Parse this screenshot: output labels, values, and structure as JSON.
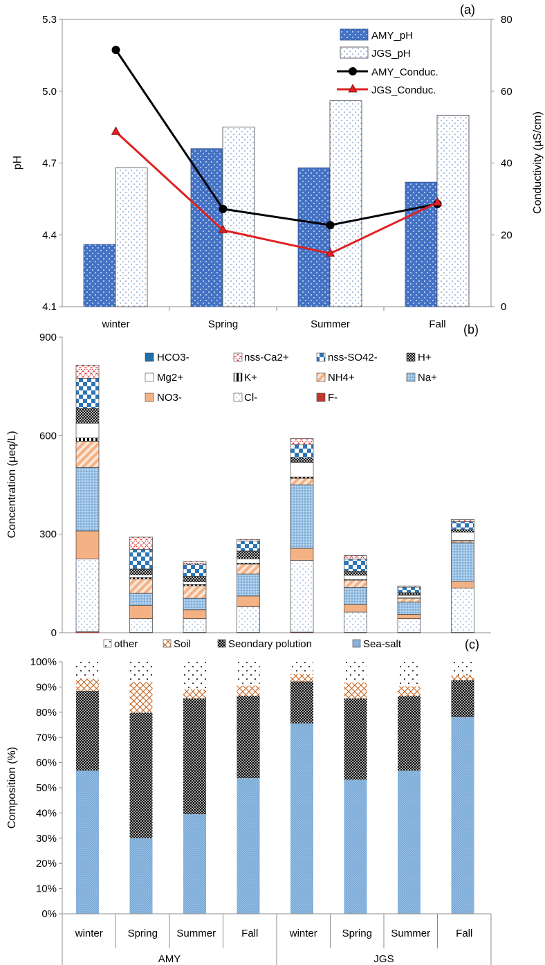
{
  "chart_data": [
    {
      "panel_label": "(a)",
      "type": "bar",
      "categories": [
        "winter",
        "Spring",
        "Summer",
        "Fall"
      ],
      "ylabel": "pH",
      "y2label": "Conductivity (µS/cm)",
      "ylim": [
        4.1,
        5.3
      ],
      "yticks": [
        "4.1",
        "4.4",
        "4.7",
        "5.0",
        "5.3"
      ],
      "y2lim": [
        0,
        80
      ],
      "y2ticks": [
        "0",
        "20",
        "40",
        "60",
        "80"
      ],
      "series": [
        {
          "name": "AMY_pH",
          "kind": "bar",
          "axis": "left",
          "color": "#4472c4",
          "values": [
            4.36,
            4.76,
            4.68,
            4.62
          ]
        },
        {
          "name": "JGS_pH",
          "kind": "bar",
          "axis": "left",
          "color": "#ffffff",
          "values": [
            4.68,
            4.85,
            4.96,
            4.9
          ]
        },
        {
          "name": "AMY_Conduc.",
          "kind": "line",
          "axis": "right",
          "color": "#000000",
          "values": [
            71.5,
            27.2,
            22.7,
            28.6
          ]
        },
        {
          "name": "JGS_Conduc.",
          "kind": "line",
          "axis": "right",
          "color": "#e02020",
          "values": [
            48.7,
            21.3,
            14.8,
            29.0
          ]
        }
      ]
    },
    {
      "panel_label": "(b)",
      "type": "bar",
      "stacked": true,
      "categories": [
        "AMY winter",
        "AMY Spring",
        "AMY Summer",
        "AMY Fall",
        "JGS winter",
        "JGS Spring",
        "JGS Summer",
        "JGS Fall"
      ],
      "ylabel": "Concentration (μeq/L)",
      "ylim": [
        0,
        900
      ],
      "yticks": [
        "0",
        "300",
        "600",
        "900"
      ],
      "series": [
        {
          "name": "F-",
          "color": "#c0392b",
          "values": [
            3,
            1,
            1,
            1,
            2,
            1,
            1,
            1
          ]
        },
        {
          "name": "Cl-",
          "color": "#ffffff",
          "values": [
            222,
            42,
            42,
            78,
            218,
            62,
            42,
            135
          ]
        },
        {
          "name": "NO3-",
          "color": "#f4b183",
          "values": [
            85,
            40,
            27,
            33,
            37,
            23,
            13,
            20
          ]
        },
        {
          "name": "Na+",
          "color": "#9dc3e6",
          "values": [
            193,
            37,
            35,
            67,
            193,
            52,
            37,
            118
          ]
        },
        {
          "name": "NH4+",
          "color": "#f4b183",
          "values": [
            80,
            44,
            38,
            30,
            20,
            22,
            12,
            5
          ]
        },
        {
          "name": "K+",
          "color": "#000000",
          "values": [
            10,
            4,
            4,
            3,
            4,
            2,
            1,
            2
          ]
        },
        {
          "name": "Mg2+",
          "color": "#ffffff",
          "values": [
            45,
            8,
            8,
            13,
            44,
            13,
            8,
            25
          ]
        },
        {
          "name": "H+",
          "color": "#404040",
          "values": [
            45,
            18,
            17,
            24,
            15,
            12,
            8,
            8
          ]
        },
        {
          "name": "nss-SO42-",
          "color": "#2e75b6",
          "values": [
            92,
            60,
            37,
            30,
            40,
            37,
            17,
            24
          ]
        },
        {
          "name": "nss-Ca2+",
          "color": "#e02020",
          "values": [
            40,
            37,
            8,
            5,
            18,
            11,
            3,
            7
          ]
        },
        {
          "name": "HCO3-",
          "color": "#1f6fa8",
          "values": [
            0,
            0,
            0,
            0,
            0,
            0,
            0,
            0
          ]
        }
      ]
    },
    {
      "panel_label": "(c)",
      "type": "bar",
      "stacked": true,
      "categories": [
        "winter",
        "Spring",
        "Summer",
        "Fall",
        "winter",
        "Spring",
        "Summer",
        "Fall"
      ],
      "groups": [
        {
          "name": "AMY",
          "count": 4
        },
        {
          "name": "JGS",
          "count": 4
        }
      ],
      "ylabel": "Composition (%)",
      "ylim": [
        0,
        100
      ],
      "yticks": [
        "0%",
        "10%",
        "20%",
        "30%",
        "40%",
        "50%",
        "60%",
        "70%",
        "80%",
        "90%",
        "100%"
      ],
      "series": [
        {
          "name": "Sea-salt",
          "color": "#9dc3e6",
          "values": [
            56.8,
            30.0,
            39.5,
            53.8,
            75.5,
            53.2,
            56.8,
            78.0
          ]
        },
        {
          "name": "Seondary polution",
          "color": "#404040",
          "values": [
            31.7,
            49.8,
            46.0,
            32.7,
            16.7,
            32.3,
            29.6,
            14.7
          ]
        },
        {
          "name": "Soil",
          "color": "#c55a11",
          "values": [
            4.8,
            12.2,
            3.5,
            4.0,
            2.9,
            6.3,
            3.9,
            2.0
          ]
        },
        {
          "name": "other",
          "color": "#ffffff",
          "values": [
            6.7,
            8.0,
            11.0,
            9.5,
            4.9,
            8.2,
            9.7,
            5.3
          ]
        }
      ]
    }
  ]
}
